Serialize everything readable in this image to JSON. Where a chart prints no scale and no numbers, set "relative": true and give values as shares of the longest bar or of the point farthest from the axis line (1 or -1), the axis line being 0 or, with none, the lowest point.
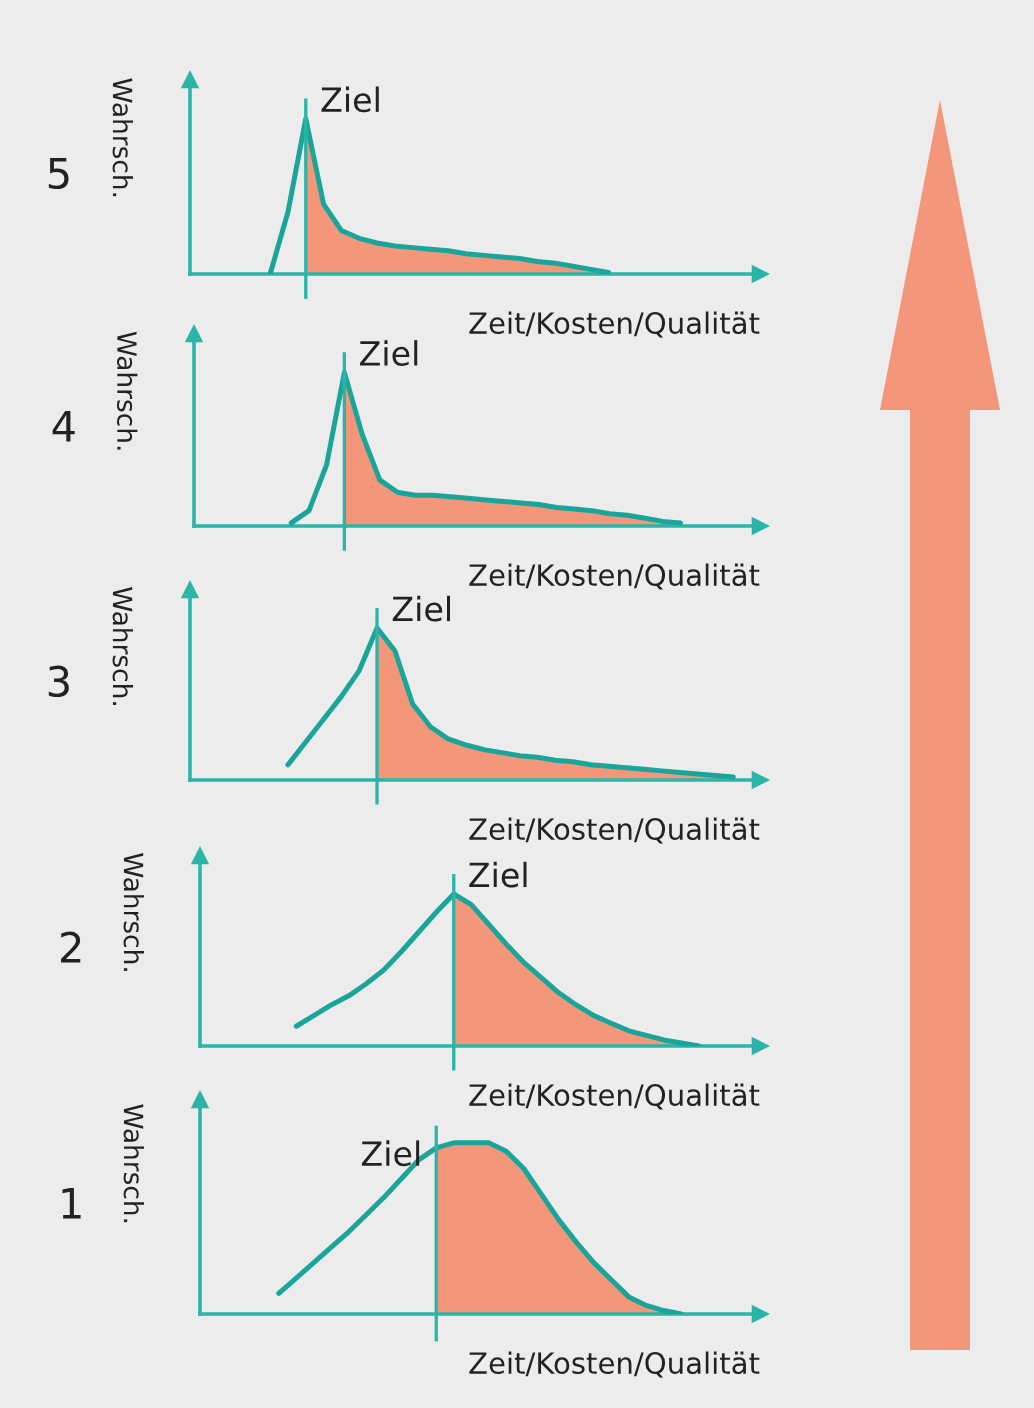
{
  "chart_data": [
    {
      "type": "line",
      "title": "5",
      "xlabel": "Zeit/Kosten/Qualität",
      "ylabel": "Wahrsch.",
      "relative": true,
      "annotations": [
        "Ziel"
      ],
      "categories": [
        null,
        null,
        null,
        null,
        null,
        null,
        null,
        null,
        null,
        null,
        null,
        null,
        null,
        null,
        null,
        null,
        null,
        null,
        null,
        null,
        null,
        null,
        null,
        null,
        null,
        null,
        null,
        null,
        null
      ],
      "series": [
        {
          "color": "#1aa59a",
          "values": [
            null,
            null,
            0,
            0.4,
            1.0,
            0.45,
            0.28,
            0.23,
            0.2,
            0.18,
            0.17,
            0.16,
            0.15,
            0.13,
            0.12,
            0.11,
            0.1,
            0.08,
            0.07,
            0.05,
            0.03,
            0.01,
            null,
            null,
            null,
            null,
            null,
            null,
            null
          ]
        },
        {
          "type": "area",
          "color": "#f4967a",
          "values": [
            null,
            null,
            null,
            null,
            1.0,
            0.45,
            0.28,
            0.23,
            0.2,
            0.18,
            0.17,
            0.16,
            0.15,
            0.13,
            0.12,
            0.11,
            0.1,
            0.08,
            0.07,
            0.05,
            0.03,
            0.01,
            null,
            null,
            null,
            null,
            null,
            null,
            null
          ]
        }
      ]
    },
    {
      "type": "line",
      "title": "4",
      "xlabel": "Zeit/Kosten/Qualität",
      "ylabel": "Wahrsch.",
      "relative": true,
      "annotations": [
        "Ziel"
      ],
      "categories": [
        null,
        null,
        null,
        null,
        null,
        null,
        null,
        null,
        null,
        null,
        null,
        null,
        null,
        null,
        null,
        null,
        null,
        null,
        null,
        null,
        null,
        null,
        null,
        null,
        null,
        null,
        null,
        null,
        null
      ],
      "series": [
        {
          "color": "#1aa59a",
          "values": [
            null,
            null,
            null,
            0.02,
            0.1,
            0.4,
            1.0,
            0.6,
            0.3,
            0.22,
            0.2,
            0.2,
            0.19,
            0.18,
            0.17,
            0.16,
            0.15,
            0.14,
            0.12,
            0.11,
            0.1,
            0.08,
            0.07,
            0.05,
            0.03,
            0.02,
            null,
            null,
            null
          ]
        },
        {
          "type": "area",
          "color": "#f4967a",
          "values": [
            null,
            null,
            null,
            null,
            null,
            null,
            1.0,
            0.6,
            0.3,
            0.22,
            0.2,
            0.2,
            0.19,
            0.18,
            0.17,
            0.16,
            0.15,
            0.14,
            0.12,
            0.11,
            0.1,
            0.08,
            0.07,
            0.05,
            0.03,
            0.02,
            null,
            null,
            null
          ]
        }
      ]
    },
    {
      "type": "line",
      "title": "3",
      "xlabel": "Zeit/Kosten/Qualität",
      "ylabel": "Wahrsch.",
      "relative": true,
      "annotations": [
        "Ziel"
      ],
      "categories": [
        null,
        null,
        null,
        null,
        null,
        null,
        null,
        null,
        null,
        null,
        null,
        null,
        null,
        null,
        null,
        null,
        null,
        null,
        null,
        null,
        null,
        null,
        null,
        null,
        null,
        null,
        null,
        null,
        null
      ],
      "series": [
        {
          "color": "#1aa59a",
          "values": [
            null,
            null,
            null,
            0.1,
            0.25,
            0.4,
            0.55,
            0.72,
            1.0,
            0.85,
            0.5,
            0.35,
            0.27,
            0.23,
            0.2,
            0.18,
            0.16,
            0.15,
            0.13,
            0.12,
            0.1,
            0.09,
            0.08,
            0.07,
            0.06,
            0.05,
            0.04,
            0.03,
            0.02
          ]
        },
        {
          "type": "area",
          "color": "#f4967a",
          "values": [
            null,
            null,
            null,
            null,
            null,
            null,
            null,
            null,
            1.0,
            0.85,
            0.5,
            0.35,
            0.27,
            0.23,
            0.2,
            0.18,
            0.16,
            0.15,
            0.13,
            0.12,
            0.1,
            0.09,
            0.08,
            0.07,
            0.06,
            0.05,
            0.04,
            0.03,
            0.02
          ]
        }
      ]
    },
    {
      "type": "line",
      "title": "2",
      "xlabel": "Zeit/Kosten/Qualität",
      "ylabel": "Wahrsch.",
      "relative": true,
      "annotations": [
        "Ziel"
      ],
      "categories": [
        null,
        null,
        null,
        null,
        null,
        null,
        null,
        null,
        null,
        null,
        null,
        null,
        null,
        null,
        null,
        null,
        null,
        null,
        null,
        null,
        null,
        null,
        null,
        null,
        null,
        null,
        null,
        null,
        null
      ],
      "series": [
        {
          "color": "#1aa59a",
          "values": [
            null,
            null,
            null,
            0.13,
            0.2,
            0.27,
            0.33,
            0.41,
            0.5,
            0.62,
            0.75,
            0.88,
            1.0,
            0.93,
            0.8,
            0.67,
            0.55,
            0.45,
            0.35,
            0.27,
            0.2,
            0.15,
            0.1,
            0.07,
            0.04,
            0.02,
            0.0,
            null,
            null
          ]
        },
        {
          "type": "area",
          "color": "#f4967a",
          "values": [
            null,
            null,
            null,
            null,
            null,
            null,
            null,
            null,
            null,
            null,
            null,
            null,
            1.0,
            0.93,
            0.8,
            0.67,
            0.55,
            0.45,
            0.35,
            0.27,
            0.2,
            0.15,
            0.1,
            0.07,
            0.04,
            0.02,
            0.0,
            null,
            null
          ]
        }
      ]
    },
    {
      "type": "line",
      "title": "1",
      "xlabel": "Zeit/Kosten/Qualität",
      "ylabel": "Wahrsch.",
      "relative": true,
      "annotations": [
        "Ziel"
      ],
      "categories": [
        null,
        null,
        null,
        null,
        null,
        null,
        null,
        null,
        null,
        null,
        null,
        null,
        null,
        null,
        null,
        null,
        null,
        null,
        null,
        null,
        null,
        null,
        null,
        null,
        null,
        null,
        null,
        null,
        null
      ],
      "series": [
        {
          "color": "#1aa59a",
          "values": [
            null,
            null,
            0.12,
            0.21,
            0.3,
            0.39,
            0.48,
            0.58,
            0.68,
            0.79,
            0.9,
            0.97,
            1.0,
            1.0,
            1.0,
            0.95,
            0.85,
            0.7,
            0.55,
            0.42,
            0.3,
            0.2,
            0.1,
            0.05,
            0.02,
            0.0,
            null,
            null,
            null
          ]
        },
        {
          "type": "area",
          "color": "#f4967a",
          "values": [
            null,
            null,
            null,
            null,
            null,
            null,
            null,
            null,
            null,
            null,
            null,
            0.97,
            1.0,
            1.0,
            1.0,
            0.95,
            0.85,
            0.7,
            0.55,
            0.42,
            0.3,
            0.2,
            0.1,
            0.05,
            0.02,
            0.0,
            null,
            null,
            null
          ]
        }
      ]
    }
  ]
}
